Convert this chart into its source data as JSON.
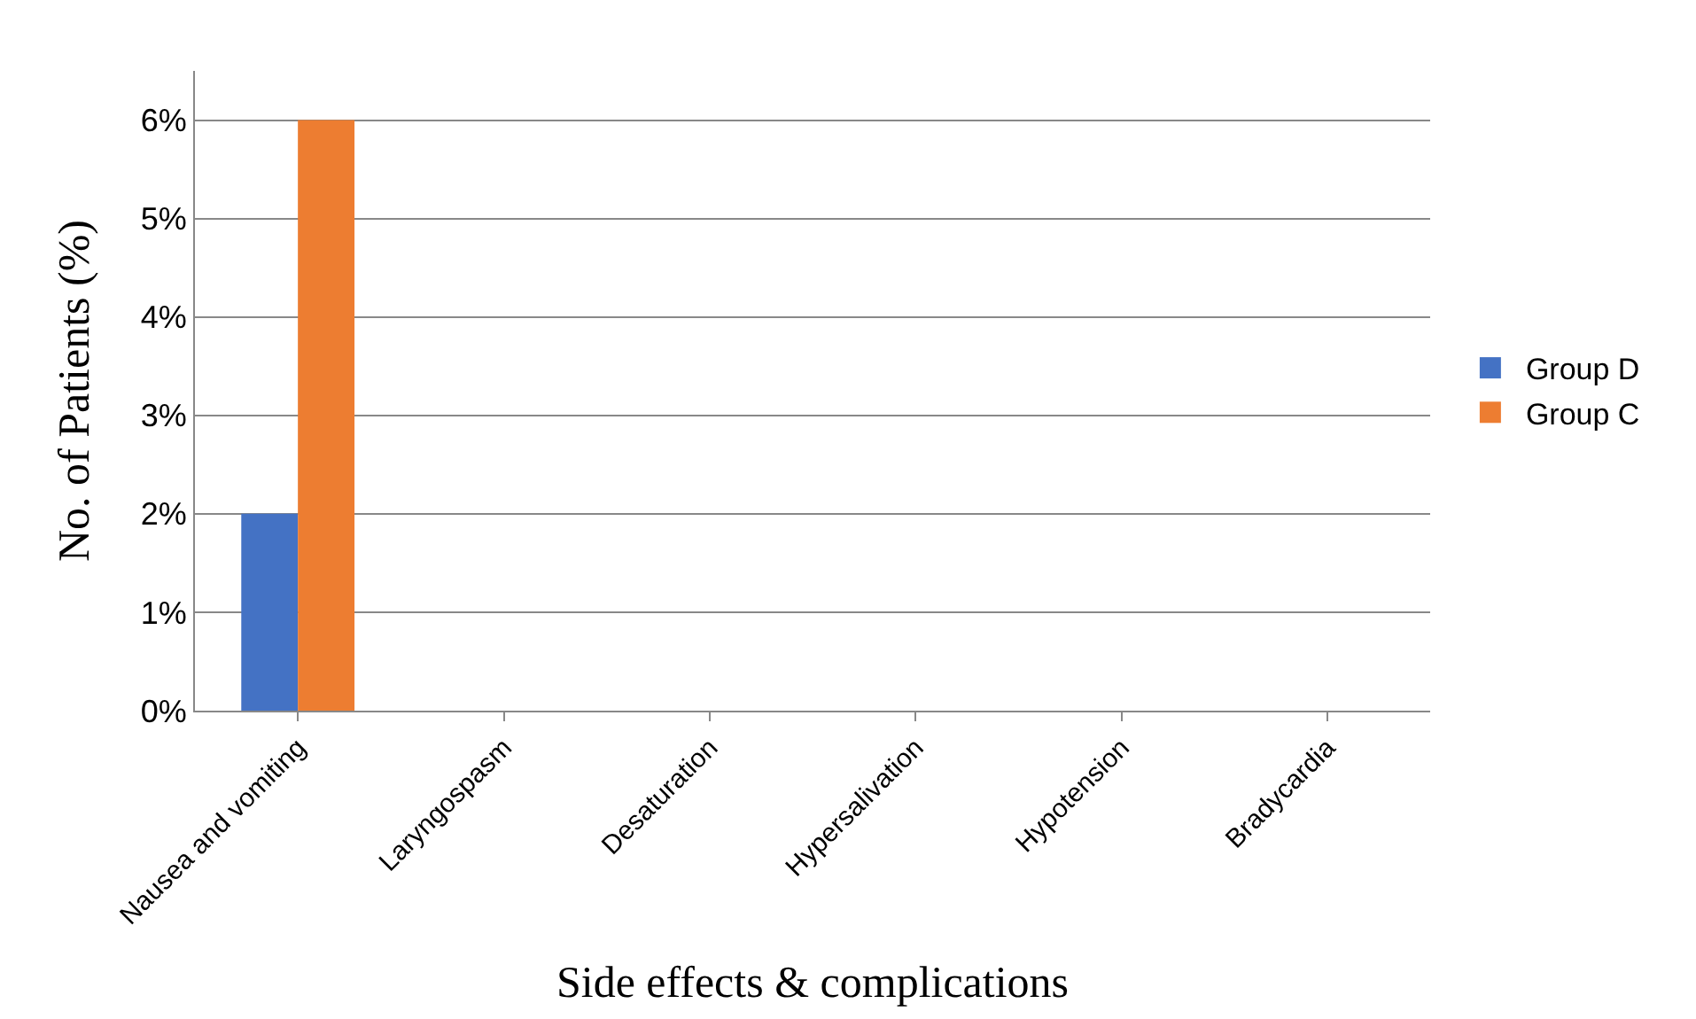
{
  "chart_data": {
    "type": "bar",
    "xlabel": "Side effects & complications",
    "ylabel": "No. of Patients (%)",
    "categories": [
      "Nausea and vomiting",
      "Laryngospasm",
      "Desaturation",
      "Hypersalivation",
      "Hypotension",
      "Bradycardia"
    ],
    "series": [
      {
        "name": "Group D",
        "color": "#4472c4",
        "values": [
          2,
          0,
          0,
          0,
          0,
          0
        ]
      },
      {
        "name": "Group C",
        "color": "#ed7d31",
        "values": [
          6,
          0,
          0,
          0,
          0,
          0
        ]
      }
    ],
    "ylim": [
      0,
      6.5
    ],
    "yticks": [
      {
        "value": 0,
        "label": "0%"
      },
      {
        "value": 1,
        "label": "1%"
      },
      {
        "value": 2,
        "label": "2%"
      },
      {
        "value": 3,
        "label": "3%"
      },
      {
        "value": 4,
        "label": "4%"
      },
      {
        "value": 5,
        "label": "5%"
      },
      {
        "value": 6,
        "label": "6%"
      }
    ],
    "grid": "y",
    "legend": "right"
  }
}
